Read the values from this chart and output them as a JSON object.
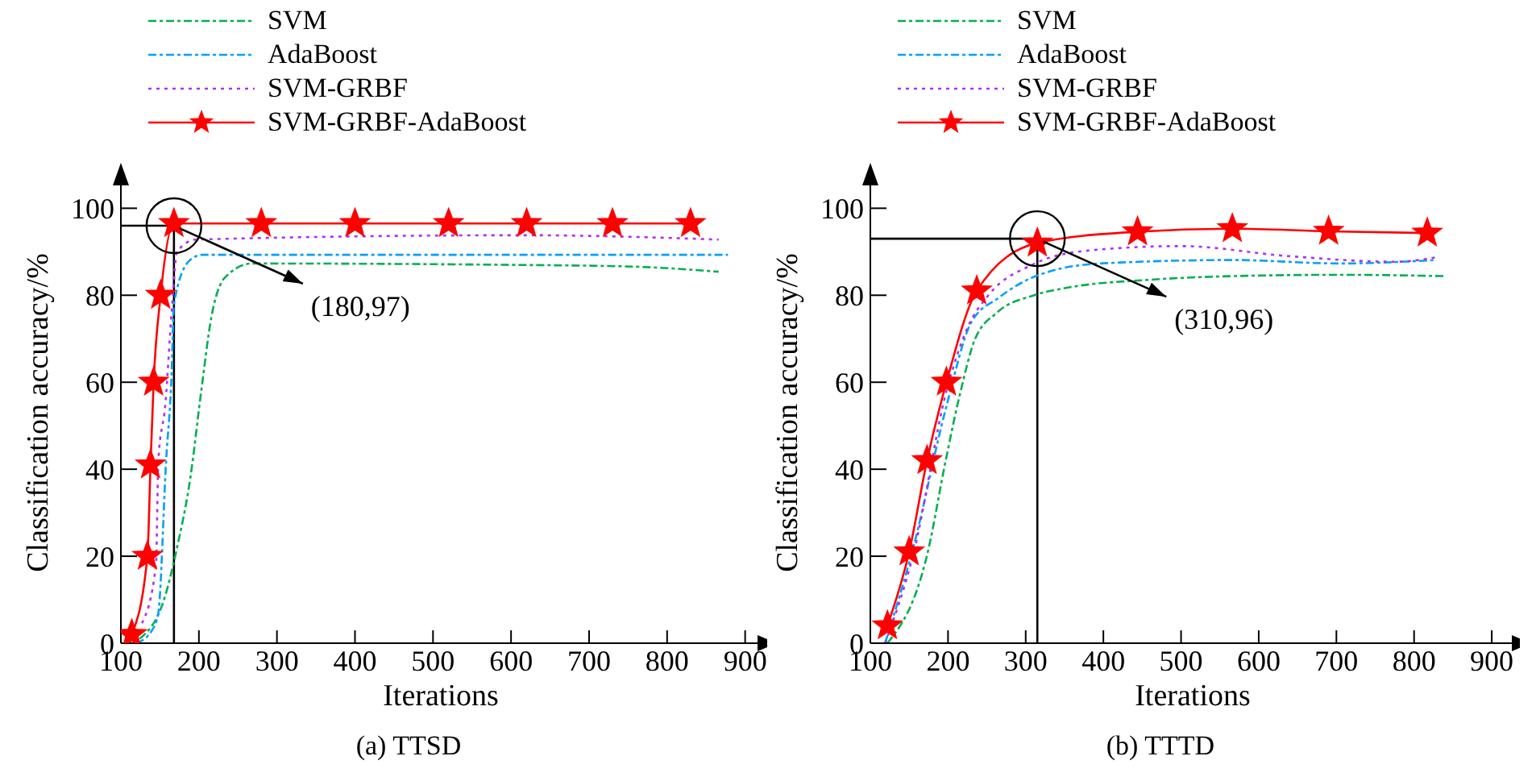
{
  "chart_data": [
    {
      "type": "line",
      "title": "(a) TTSD",
      "xlabel": "Iterations",
      "ylabel": "Classification accuracy/%",
      "xlim": [
        100,
        920
      ],
      "ylim": [
        0,
        106
      ],
      "xticks": [
        100,
        200,
        300,
        400,
        500,
        600,
        700,
        800,
        900
      ],
      "yticks": [
        0,
        20,
        40,
        60,
        80,
        100
      ],
      "grid": false,
      "legend": "top left",
      "series": [
        {
          "name": "SVM",
          "color": "#00b050",
          "line_style": "dashed",
          "marker": "none",
          "x": [
            124,
            157,
            172,
            189,
            203,
            216,
            233,
            268,
            590,
            753,
            866
          ],
          "values": [
            1,
            11,
            22,
            38,
            58,
            75,
            84,
            87.3,
            87,
            86.6,
            85.4
          ]
        },
        {
          "name": "AdaBoost",
          "color": "#00a0ff",
          "line_style": "dashed",
          "marker": "none",
          "x": [
            120,
            140,
            148,
            158,
            165,
            168,
            188,
            204,
            500,
            878
          ],
          "values": [
            0,
            3,
            7,
            42,
            62,
            78,
            88,
            89.3,
            89.3,
            89.3
          ]
        },
        {
          "name": "SVM-GRBF",
          "color": "#b030f0",
          "line_style": "dotted",
          "marker": "none",
          "x": [
            127,
            145,
            148,
            157,
            165,
            172,
            196,
            617,
            866
          ],
          "values": [
            4.6,
            18,
            42,
            55,
            76,
            90,
            92.8,
            93.8,
            92.8
          ]
        },
        {
          "name": "SVM-GRBF-AdaBoost",
          "color": "#ff0000",
          "line_style": "solid",
          "marker": "star",
          "x": [
            114,
            134,
            138,
            142,
            151,
            168,
            280,
            400,
            520,
            620,
            730,
            830
          ],
          "values": [
            2,
            20,
            41,
            60,
            80,
            96.5,
            96.5,
            96.5,
            96.5,
            96.5,
            96.5,
            96.5
          ]
        }
      ],
      "ref_lines": [
        {
          "axis": "x",
          "value": 168,
          "color": "#000000"
        },
        {
          "axis": "y",
          "value": 96,
          "color": "#000000"
        }
      ],
      "annotations": [
        {
          "text": "(180,97)",
          "x": 168,
          "y": 96
        }
      ]
    },
    {
      "type": "line",
      "title": "(b) TTTD",
      "xlabel": "Iterations",
      "ylabel": "Classification accuracy/%",
      "xlim": [
        100,
        930
      ],
      "ylim": [
        0,
        106
      ],
      "xticks": [
        100,
        200,
        300,
        400,
        500,
        600,
        700,
        800,
        900
      ],
      "yticks": [
        0,
        20,
        40,
        60,
        80,
        100
      ],
      "grid": false,
      "legend": "top left",
      "series": [
        {
          "name": "SVM",
          "color": "#00b050",
          "line_style": "dashed",
          "marker": "none",
          "x": [
            122,
            174,
            197,
            215,
            235,
            263,
            311,
            359,
            455,
            567,
            704,
            839
          ],
          "values": [
            0,
            21,
            42,
            57,
            70,
            76,
            80,
            81.9,
            83.5,
            84.4,
            84.7,
            84.4
          ]
        },
        {
          "name": "AdaBoost",
          "color": "#00a0ff",
          "line_style": "dashed",
          "marker": "none",
          "x": [
            119,
            156,
            197,
            230,
            265,
            313,
            396,
            568,
            704,
            828
          ],
          "values": [
            0,
            22.5,
            53.8,
            73.8,
            79.4,
            84.4,
            87.3,
            88.1,
            87.3,
            88.1
          ]
        },
        {
          "name": "SVM-GRBF",
          "color": "#b030f0",
          "line_style": "dotted",
          "marker": "none",
          "x": [
            119,
            156,
            198,
            225,
            252,
            307,
            376,
            500,
            638,
            776,
            828
          ],
          "values": [
            0,
            21,
            58,
            72.5,
            80,
            86.9,
            90.2,
            91.3,
            89,
            87.7,
            88.7
          ]
        },
        {
          "name": "SVM-GRBF-AdaBoost",
          "color": "#ff0000",
          "line_style": "solid",
          "marker": "star",
          "x": [
            122,
            150,
            173,
            198,
            237,
            315,
            444,
            566,
            690,
            817
          ],
          "values": [
            4,
            21,
            42,
            60,
            81,
            92,
            94.6,
            95.3,
            94.7,
            94.3
          ]
        }
      ],
      "ref_lines": [
        {
          "axis": "x",
          "value": 315,
          "color": "#000000"
        },
        {
          "axis": "y",
          "value": 93,
          "color": "#000000"
        }
      ],
      "annotations": [
        {
          "text": "(310,96)",
          "x": 315,
          "y": 93
        }
      ]
    }
  ]
}
